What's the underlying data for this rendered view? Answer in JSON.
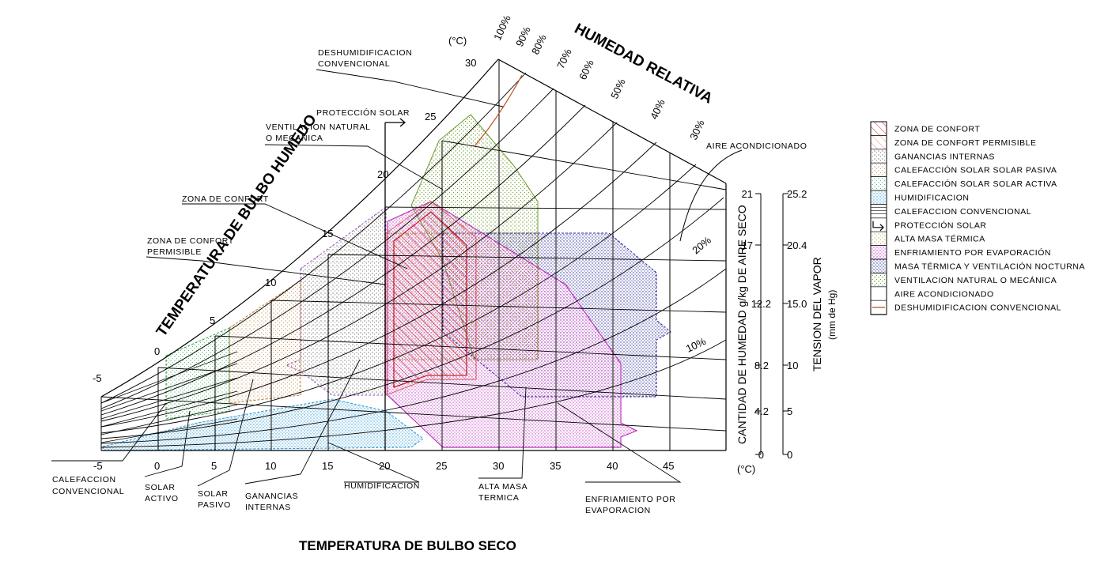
{
  "titles": {
    "humedad_relativa": "HUMEDAD RELATIVA",
    "bulbo_humedo": "TEMPERATURA DE BULBO HUMEDO",
    "bulbo_seco": "TEMPERATURA DE BULBO SECO",
    "cantidad_humedad": "CANTIDAD DE HUMEDAD g/kg DE AIRE SECO",
    "tension_vapor": "TENSION DEL VAPOR",
    "tension_unit": "(mm de Hg)",
    "celsius_top": "(°C)",
    "celsius_bottom": "(°C)"
  },
  "dry_bulb_ticks": [
    "-5",
    "0",
    "5",
    "10",
    "15",
    "20",
    "25",
    "30",
    "35",
    "40",
    "45"
  ],
  "wet_bulb_ticks": [
    "-5",
    "0",
    "5",
    "10",
    "15",
    "20",
    "25",
    "30"
  ],
  "rh_labels": [
    "100%",
    "90%",
    "80%",
    "70%",
    "60%",
    "50%",
    "40%",
    "30%",
    "20%",
    "10%"
  ],
  "humidity_ticks": [
    "0",
    "4.2",
    "8.2",
    "12.2",
    "17",
    "21"
  ],
  "vapor_ticks": [
    "0",
    "5",
    "10",
    "15.0",
    "20.4",
    "25.2"
  ],
  "callouts": {
    "deshum": [
      "DESHUMIDIFICACION",
      "CONVENCIONAL"
    ],
    "proteccion": [
      "PROTECCIÓN SOLAR"
    ],
    "ventilacion": [
      "VENTILACION NATURAL",
      "O MECANICA"
    ],
    "confort": [
      "ZONA DE CONFORT"
    ],
    "confort_perm": [
      "ZONA DE CONFORT",
      "PERMISIBLE"
    ],
    "aire": [
      "AIRE ACONDICIONADO"
    ],
    "calef_conv": [
      "CALEFACCION",
      "CONVENCIONAL"
    ],
    "solar_activo": [
      "SOLAR",
      "ACTIVO"
    ],
    "solar_pasivo": [
      "SOLAR",
      "PASIVO"
    ],
    "ganancias": [
      "GANANCIAS",
      "INTERNAS"
    ],
    "humidificacion": [
      "HUMIDIFICACION"
    ],
    "alta_masa": [
      "ALTA MASA",
      "TERMICA"
    ],
    "enfriamiento": [
      "ENFRIAMIENTO POR",
      "EVAPORACION"
    ]
  },
  "legend": [
    {
      "label": "ZONA DE CONFORT",
      "color": "#d23a3a",
      "style": "hatch"
    },
    {
      "label": "ZONA DE CONFORT PERMISIBLE",
      "color": "#d23a3a",
      "style": "hatch-light"
    },
    {
      "label": "GANANCIAS INTERNAS",
      "color": "#555555",
      "style": "dots"
    },
    {
      "label": "CALEFACCIÓN SOLAR SOLAR PASIVA",
      "color": "#c07a2a",
      "style": "dots"
    },
    {
      "label": "CALEFACCIÓN SOLAR SOLAR ACTIVA",
      "color": "#2aa84a",
      "style": "dots"
    },
    {
      "label": "HUMIDIFICACION",
      "color": "#2a9bd6",
      "style": "dots"
    },
    {
      "label": "CALEFACCION CONVENCIONAL",
      "color": "#333333",
      "style": "lines"
    },
    {
      "label": "PROTECCIÓN SOLAR",
      "color": "#000000",
      "style": "arrow"
    },
    {
      "label": "ALTA MASA TÉRMICA",
      "color": "#a08a20",
      "style": "dots"
    },
    {
      "label": "ENFRIAMIENTO POR EVAPORACIÓN",
      "color": "#c030c0",
      "style": "dots"
    },
    {
      "label": "MASA TÉRMICA Y VENTILACIÓN NOCTURNA",
      "color": "#22229a",
      "style": "dots"
    },
    {
      "label": "VENTILACION NATURAL O MECÁNICA",
      "color": "#6a9a2a",
      "style": "dots"
    },
    {
      "label": "AIRE ACONDICIONADO",
      "color": "#000000",
      "style": "none"
    },
    {
      "label": "DESHUMIDIFICACION CONVENCIONAL",
      "color": "#c05020",
      "style": "dash"
    }
  ]
}
